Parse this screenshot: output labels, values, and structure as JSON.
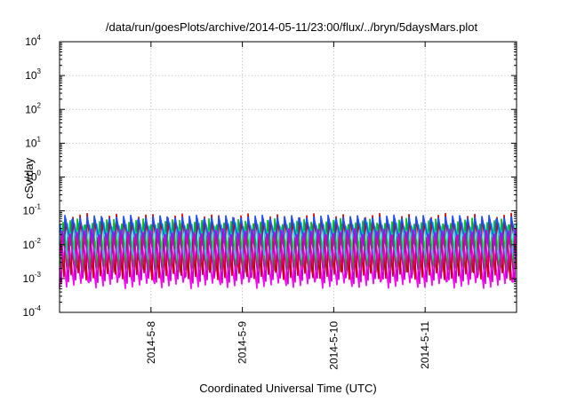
{
  "chart_data": {
    "type": "line",
    "title": "/data/run/goesPlots/archive/2014-05-11/23:00/flux/../bryn/5daysMars.plot",
    "xlabel": "Coordinated Universal Time (UTC)",
    "ylabel": "cSv/day",
    "y_scale": "log",
    "ylim": [
      0.0001,
      10000
    ],
    "y_ticks": [
      {
        "base": "10",
        "exp": "-4",
        "value": 0.0001
      },
      {
        "base": "10",
        "exp": "-3",
        "value": 0.001
      },
      {
        "base": "10",
        "exp": "-2",
        "value": 0.01
      },
      {
        "base": "10",
        "exp": "-1",
        "value": 0.1
      },
      {
        "base": "10",
        "exp": "0",
        "value": 1
      },
      {
        "base": "10",
        "exp": "1",
        "value": 10
      },
      {
        "base": "10",
        "exp": "2",
        "value": 100
      },
      {
        "base": "10",
        "exp": "3",
        "value": 1000
      },
      {
        "base": "10",
        "exp": "4",
        "value": 10000
      }
    ],
    "xlim": [
      "2014-05-07T00:00",
      "2014-05-12T00:00"
    ],
    "x_ticks": [
      {
        "label": "2014-5-8",
        "value": "2014-05-08T00:00"
      },
      {
        "label": "2014-5-9",
        "value": "2014-05-09T00:00"
      },
      {
        "label": "2014-5-10",
        "value": "2014-05-10T00:00"
      },
      {
        "label": "2014-5-11",
        "value": "2014-05-11T00:00"
      }
    ],
    "grid": true,
    "pattern": {
      "description": "periodic sawtooth: sharp rise to a peak then gradual decay",
      "cycles_per_day": 12.5
    },
    "series": [
      {
        "color": "#ff00ff",
        "peak": 0.025,
        "trough": 0.0005
      },
      {
        "color": "#cc0000",
        "peak": 0.085,
        "trough": 0.0009
      },
      {
        "color": "#00c000",
        "peak": 0.06,
        "trough": 0.0015
      },
      {
        "color": "#00e0e0",
        "peak": 0.045,
        "trough": 0.0035
      },
      {
        "color": "#1f4fff",
        "peak": 0.075,
        "trough": 0.009
      },
      {
        "color": "#cc00cc",
        "peak": 0.03,
        "trough": 0.0007
      }
    ]
  }
}
